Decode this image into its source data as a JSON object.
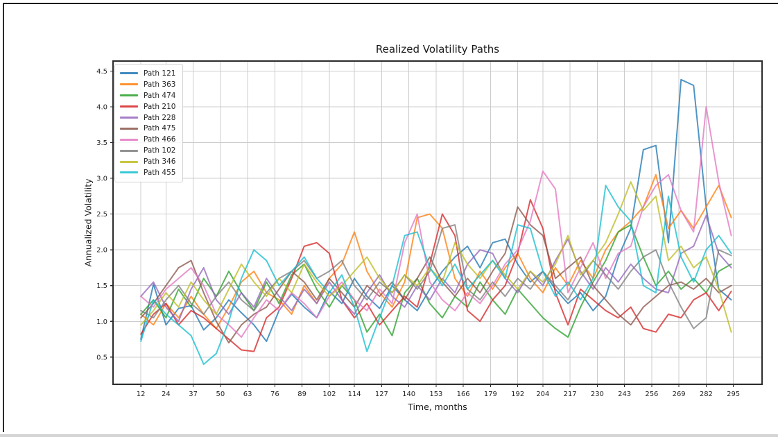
{
  "window": {
    "background": "#ffffff",
    "frame_color": "#1c1c1c",
    "bottom_strip_color": "#d4d4d4"
  },
  "chart": {
    "title": "Realized Volatility Paths",
    "xlabel": "Time, months",
    "ylabel": "Annualized Volatility"
  },
  "chart_data": {
    "type": "line",
    "title": "Realized Volatility Paths",
    "xlabel": "Time, months",
    "ylabel": "Annualized Volatility",
    "grid": true,
    "legend_position": "upper left",
    "line_alpha": 0.78,
    "grid_color": "#cccccc",
    "spine_color": "#2b2b2b",
    "tick_label_color": "#262626",
    "xlim": [
      -1.3,
      308.7
    ],
    "ylim": [
      0.12,
      4.64
    ],
    "x_ticks": [
      12,
      24,
      37,
      50,
      63,
      76,
      89,
      102,
      114,
      127,
      140,
      153,
      166,
      179,
      192,
      204,
      217,
      230,
      243,
      256,
      269,
      282,
      295
    ],
    "y_ticks": [
      0.5,
      1.0,
      1.5,
      2.0,
      2.5,
      3.0,
      3.5,
      4.0,
      4.5
    ],
    "x": [
      12,
      18,
      24,
      30,
      36,
      42,
      48,
      54,
      60,
      66,
      72,
      78,
      84,
      90,
      96,
      102,
      108,
      114,
      120,
      126,
      132,
      138,
      144,
      150,
      156,
      162,
      168,
      174,
      180,
      186,
      192,
      198,
      204,
      210,
      216,
      222,
      228,
      234,
      240,
      246,
      252,
      258,
      264,
      270,
      276,
      282,
      288,
      294
    ],
    "series": [
      {
        "name": "Path 121",
        "color": "#1f77b4",
        "values": [
          0.75,
          1.52,
          0.95,
          1.18,
          1.22,
          0.88,
          1.05,
          1.3,
          1.12,
          0.95,
          0.72,
          1.15,
          1.38,
          1.2,
          1.05,
          1.42,
          1.25,
          1.6,
          1.35,
          1.18,
          1.5,
          1.3,
          1.15,
          1.45,
          1.7,
          1.9,
          2.05,
          1.75,
          2.1,
          2.15,
          1.8,
          1.55,
          1.7,
          1.45,
          1.25,
          1.4,
          1.15,
          1.35,
          1.9,
          2.3,
          3.4,
          3.46,
          2.1,
          4.38,
          4.3,
          2.6,
          1.45,
          1.3
        ]
      },
      {
        "name": "Path 363",
        "color": "#ff7f0e",
        "values": [
          1.1,
          0.95,
          1.25,
          1.05,
          1.35,
          1.1,
          0.9,
          1.2,
          1.55,
          1.7,
          1.4,
          1.3,
          1.1,
          1.5,
          1.25,
          1.6,
          1.8,
          2.25,
          1.7,
          1.4,
          1.2,
          1.55,
          2.45,
          2.5,
          2.3,
          1.6,
          1.35,
          1.7,
          1.45,
          1.75,
          1.95,
          1.6,
          1.4,
          1.75,
          1.5,
          1.85,
          1.6,
          2.0,
          2.25,
          2.4,
          2.6,
          3.05,
          2.3,
          2.55,
          2.3,
          2.6,
          2.9,
          2.45
        ]
      },
      {
        "name": "Path 474",
        "color": "#2ca02c",
        "values": [
          1.1,
          1.3,
          1.05,
          1.45,
          1.2,
          1.6,
          1.35,
          1.7,
          1.4,
          1.15,
          1.55,
          1.25,
          1.65,
          1.8,
          1.45,
          1.2,
          1.5,
          1.3,
          0.85,
          1.1,
          0.8,
          1.4,
          1.6,
          1.25,
          1.05,
          1.35,
          1.2,
          1.55,
          1.3,
          1.1,
          1.45,
          1.25,
          1.05,
          0.9,
          0.78,
          1.2,
          1.55,
          1.85,
          2.25,
          2.35,
          1.9,
          1.5,
          1.7,
          1.45,
          1.6,
          1.4,
          1.7,
          1.8
        ]
      },
      {
        "name": "Path 210",
        "color": "#d62728",
        "values": [
          0.82,
          1.1,
          1.25,
          0.95,
          1.15,
          1.05,
          0.9,
          0.75,
          0.6,
          0.58,
          1.05,
          1.2,
          1.6,
          2.05,
          2.1,
          1.95,
          1.3,
          1.05,
          1.25,
          0.95,
          1.15,
          1.35,
          1.2,
          1.8,
          2.5,
          2.2,
          1.15,
          1.0,
          1.3,
          1.5,
          1.95,
          2.7,
          2.3,
          1.4,
          0.95,
          1.45,
          1.3,
          1.15,
          1.05,
          1.2,
          0.9,
          0.85,
          1.1,
          1.05,
          1.3,
          1.4,
          1.15,
          1.42
        ]
      },
      {
        "name": "Path 228",
        "color": "#9467bd",
        "values": [
          1.35,
          1.55,
          1.2,
          1.0,
          1.45,
          1.75,
          1.3,
          1.1,
          1.4,
          1.2,
          1.6,
          1.35,
          1.15,
          1.45,
          1.25,
          1.55,
          1.3,
          1.1,
          1.4,
          1.65,
          1.35,
          1.2,
          1.5,
          1.3,
          1.6,
          1.4,
          1.8,
          2.0,
          1.95,
          1.6,
          1.4,
          1.7,
          1.5,
          1.85,
          2.15,
          1.7,
          1.45,
          1.75,
          1.55,
          1.8,
          1.6,
          1.45,
          1.4,
          1.95,
          2.05,
          2.48,
          1.95,
          1.75
        ]
      },
      {
        "name": "Path 475",
        "color": "#8c564b",
        "values": [
          1.05,
          1.25,
          1.5,
          1.75,
          1.85,
          1.4,
          1.0,
          0.7,
          0.95,
          1.1,
          1.2,
          1.45,
          1.7,
          1.55,
          1.3,
          1.6,
          1.4,
          1.2,
          1.5,
          1.35,
          1.55,
          1.3,
          1.6,
          1.9,
          1.55,
          1.35,
          1.6,
          1.4,
          1.7,
          1.95,
          2.6,
          2.35,
          2.2,
          1.6,
          1.75,
          1.9,
          1.5,
          1.3,
          1.1,
          0.95,
          1.2,
          1.35,
          1.5,
          1.55,
          1.45,
          1.6,
          1.4,
          1.5
        ]
      },
      {
        "name": "Path 466",
        "color": "#e377c2",
        "values": [
          1.35,
          1.2,
          1.45,
          1.6,
          1.75,
          1.5,
          1.1,
          0.95,
          0.78,
          1.05,
          1.3,
          1.15,
          1.4,
          1.25,
          1.05,
          1.35,
          1.55,
          1.3,
          1.15,
          1.45,
          1.25,
          2.1,
          2.5,
          1.55,
          1.3,
          1.15,
          1.4,
          1.25,
          1.5,
          1.8,
          2.0,
          2.4,
          3.1,
          2.85,
          1.4,
          1.75,
          2.1,
          1.6,
          1.95,
          2.05,
          2.6,
          2.9,
          3.05,
          2.55,
          2.25,
          4.0,
          2.95,
          2.2
        ]
      },
      {
        "name": "Path 102",
        "color": "#7f7f7f",
        "values": [
          1.15,
          1.05,
          1.3,
          1.5,
          1.25,
          1.1,
          1.35,
          1.55,
          1.3,
          1.15,
          1.4,
          1.6,
          1.7,
          1.85,
          1.6,
          1.7,
          1.85,
          1.5,
          1.3,
          1.55,
          1.4,
          1.65,
          1.45,
          1.7,
          2.3,
          2.35,
          1.45,
          1.3,
          1.55,
          1.35,
          1.6,
          1.45,
          1.7,
          1.5,
          1.3,
          1.6,
          1.85,
          1.65,
          1.45,
          1.7,
          1.9,
          2.0,
          1.55,
          1.2,
          0.9,
          1.05,
          2.0,
          1.92
        ]
      },
      {
        "name": "Path 346",
        "color": "#bcbd22",
        "values": [
          0.95,
          1.15,
          1.4,
          1.2,
          1.55,
          1.3,
          1.1,
          1.45,
          1.8,
          1.55,
          1.35,
          1.6,
          1.4,
          1.8,
          1.55,
          1.35,
          1.5,
          1.7,
          1.9,
          1.6,
          1.4,
          1.65,
          1.5,
          1.75,
          1.55,
          2.1,
          1.8,
          1.6,
          1.85,
          1.65,
          1.45,
          1.7,
          1.55,
          1.8,
          2.2,
          1.65,
          1.85,
          2.1,
          2.5,
          2.95,
          2.55,
          2.75,
          1.85,
          2.05,
          1.75,
          1.9,
          1.45,
          0.85
        ]
      },
      {
        "name": "Path 455",
        "color": "#17becf",
        "values": [
          0.72,
          1.3,
          1.1,
          0.95,
          0.8,
          0.4,
          0.55,
          1.0,
          1.6,
          2.0,
          1.85,
          1.5,
          1.7,
          1.9,
          1.6,
          1.4,
          1.65,
          1.2,
          0.58,
          1.05,
          1.5,
          2.2,
          2.25,
          1.75,
          1.5,
          1.8,
          1.45,
          1.65,
          1.85,
          1.6,
          2.35,
          2.3,
          1.7,
          1.35,
          1.55,
          1.3,
          1.6,
          2.9,
          2.6,
          2.4,
          1.5,
          1.4,
          2.75,
          1.9,
          1.55,
          2.0,
          2.2,
          1.95
        ]
      }
    ]
  }
}
